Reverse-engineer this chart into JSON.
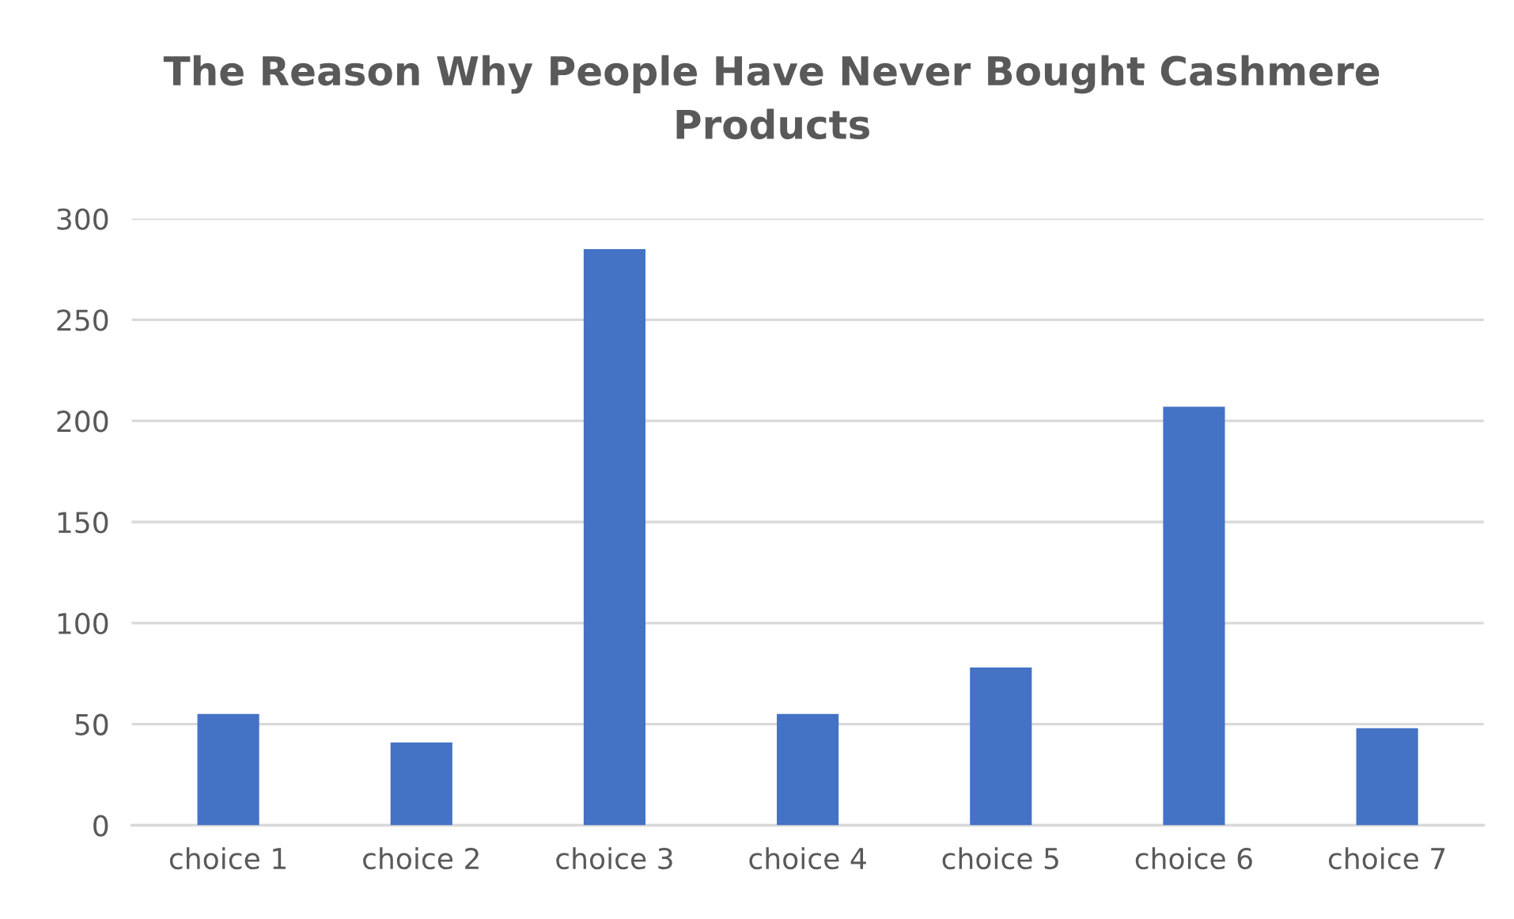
{
  "chart_data": {
    "type": "bar",
    "title": "The Reason Why People Have Never Bought Cashmere\nProducts",
    "categories": [
      "choice 1",
      "choice 2",
      "choice 3",
      "choice 4",
      "choice 5",
      "choice 6",
      "choice 7"
    ],
    "values": [
      55,
      41,
      285,
      55,
      78,
      207,
      48
    ],
    "color": "#4472c4",
    "ylim": [
      0,
      300
    ],
    "yticks": [
      0,
      50,
      100,
      150,
      200,
      250,
      300
    ],
    "grid": "y"
  }
}
